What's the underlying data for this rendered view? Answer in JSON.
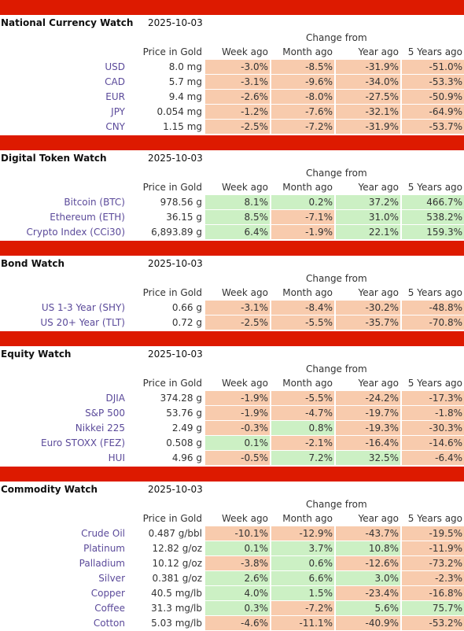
{
  "headers": {
    "price": "Price in Gold",
    "week": "Week ago",
    "month": "Month ago",
    "year": "Year ago",
    "five": "5 Years ago",
    "change_from": "Change from"
  },
  "colors": {
    "bar": "#dd1a00",
    "negative": "#f8cbad",
    "positive": "#ccf0c4",
    "name": "#5b4a9a"
  },
  "sections": [
    {
      "title": "National Currency Watch",
      "date": "2025-10-03",
      "rows": [
        {
          "name": "USD",
          "price": "8.0 mg",
          "week": "-3.0%",
          "month": "-8.5%",
          "year": "-31.9%",
          "five": "-51.0%"
        },
        {
          "name": "CAD",
          "price": "5.7 mg",
          "week": "-3.1%",
          "month": "-9.6%",
          "year": "-34.0%",
          "five": "-53.3%"
        },
        {
          "name": "EUR",
          "price": "9.4 mg",
          "week": "-2.6%",
          "month": "-8.0%",
          "year": "-27.5%",
          "five": "-50.9%"
        },
        {
          "name": "JPY",
          "price": "0.054 mg",
          "week": "-1.2%",
          "month": "-7.6%",
          "year": "-32.1%",
          "five": "-64.9%"
        },
        {
          "name": "CNY",
          "price": "1.15 mg",
          "week": "-2.5%",
          "month": "-7.2%",
          "year": "-31.9%",
          "five": "-53.7%"
        }
      ]
    },
    {
      "title": "Digital Token Watch",
      "date": "2025-10-03",
      "rows": [
        {
          "name": "Bitcoin (BTC)",
          "price": "978.56 g",
          "week": "8.1%",
          "month": "0.2%",
          "year": "37.2%",
          "five": "466.7%"
        },
        {
          "name": "Ethereum (ETH)",
          "price": "36.15 g",
          "week": "8.5%",
          "month": "-7.1%",
          "year": "31.0%",
          "five": "538.2%"
        },
        {
          "name": "Crypto Index (CCi30)",
          "price": "6,893.89 g",
          "week": "6.4%",
          "month": "-1.9%",
          "year": "22.1%",
          "five": "159.3%"
        }
      ]
    },
    {
      "title": "Bond Watch",
      "date": "2025-10-03",
      "rows": [
        {
          "name": "US 1-3 Year (SHY)",
          "price": "0.66 g",
          "week": "-3.1%",
          "month": "-8.4%",
          "year": "-30.2%",
          "five": "-48.8%"
        },
        {
          "name": "US 20+ Year (TLT)",
          "price": "0.72 g",
          "week": "-2.5%",
          "month": "-5.5%",
          "year": "-35.7%",
          "five": "-70.8%"
        }
      ]
    },
    {
      "title": "Equity Watch",
      "date": "2025-10-03",
      "rows": [
        {
          "name": "DJIA",
          "price": "374.28 g",
          "week": "-1.9%",
          "month": "-5.5%",
          "year": "-24.2%",
          "five": "-17.3%"
        },
        {
          "name": "S&P 500",
          "price": "53.76 g",
          "week": "-1.9%",
          "month": "-4.7%",
          "year": "-19.7%",
          "five": "-1.8%"
        },
        {
          "name": "Nikkei 225",
          "price": "2.49 g",
          "week": "-0.3%",
          "month": "0.8%",
          "year": "-19.3%",
          "five": "-30.3%"
        },
        {
          "name": "Euro STOXX (FEZ)",
          "price": "0.508 g",
          "week": "0.1%",
          "month": "-2.1%",
          "year": "-16.4%",
          "five": "-14.6%"
        },
        {
          "name": "HUI",
          "price": "4.96 g",
          "week": "-0.5%",
          "month": "7.2%",
          "year": "32.5%",
          "five": "-6.4%"
        }
      ]
    },
    {
      "title": "Commodity Watch",
      "date": "2025-10-03",
      "rows": [
        {
          "name": "Crude Oil",
          "price": "0.487 g/bbl",
          "week": "-10.1%",
          "month": "-12.9%",
          "year": "-43.7%",
          "five": "-19.5%"
        },
        {
          "name": "Platinum",
          "price": "12.82 g/oz",
          "week": "0.1%",
          "month": "3.7%",
          "year": "10.8%",
          "five": "-11.9%"
        },
        {
          "name": "Palladium",
          "price": "10.12 g/oz",
          "week": "-3.8%",
          "month": "0.6%",
          "year": "-12.6%",
          "five": "-73.2%"
        },
        {
          "name": "Silver",
          "price": "0.381 g/oz",
          "week": "2.6%",
          "month": "6.6%",
          "year": "3.0%",
          "five": "-2.3%"
        },
        {
          "name": "Copper",
          "price": "40.5 mg/lb",
          "week": "4.0%",
          "month": "1.5%",
          "year": "-23.4%",
          "five": "-16.8%"
        },
        {
          "name": "Coffee",
          "price": "31.3 mg/lb",
          "week": "0.3%",
          "month": "-7.2%",
          "year": "5.6%",
          "five": "75.7%"
        },
        {
          "name": "Cotton",
          "price": "5.03 mg/lb",
          "week": "-4.6%",
          "month": "-11.1%",
          "year": "-40.9%",
          "five": "-53.2%"
        }
      ]
    }
  ]
}
